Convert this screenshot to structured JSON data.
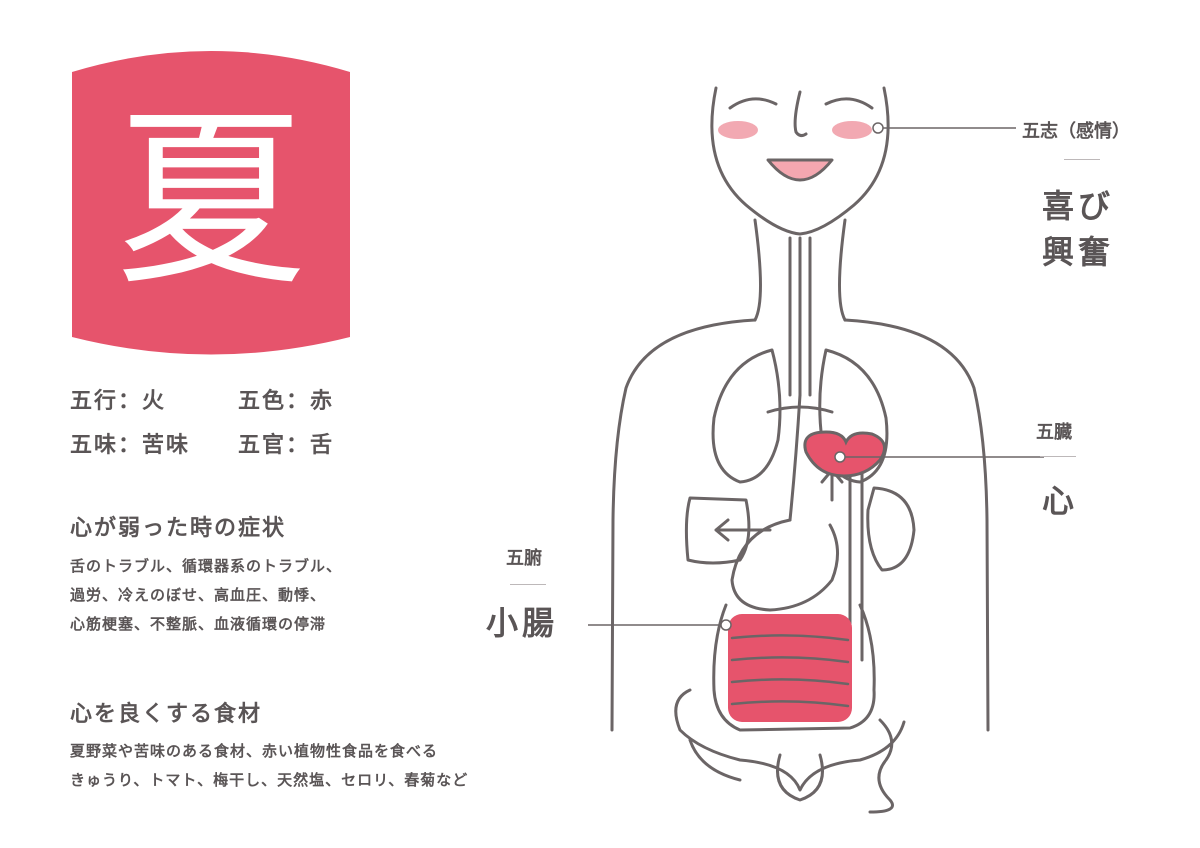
{
  "season": "夏",
  "attributes": [
    [
      {
        "label": "五行：火"
      },
      {
        "label": "五色：赤"
      }
    ],
    [
      {
        "label": "五味：苦味"
      },
      {
        "label": "五官：舌"
      }
    ]
  ],
  "symptoms": {
    "title": "心が弱った時の症状",
    "lines": [
      "舌のトラブル、循環器系のトラブル、",
      "過労、冷えのぼせ、高血圧、動悸、",
      "心筋梗塞、不整脈、血液循環の停滞"
    ]
  },
  "foods": {
    "title": "心を良くする食材",
    "lines": [
      "夏野菜や苦味のある食材、赤い植物性食品を食べる",
      "きゅうり、トマト、梅干し、天然塩、セロリ、春菊など"
    ]
  },
  "labels": {
    "emotion": {
      "category": "五志（感情）",
      "value_lines": [
        "喜び",
        "興奮"
      ]
    },
    "organ": {
      "category": "五臓",
      "value": "心"
    },
    "bowel": {
      "category": "五腑",
      "value": "小腸"
    }
  },
  "colors": {
    "accent": "#e6546c",
    "cheek": "#f2a9b2",
    "text": "#5a5556",
    "line": "#6b6566"
  }
}
